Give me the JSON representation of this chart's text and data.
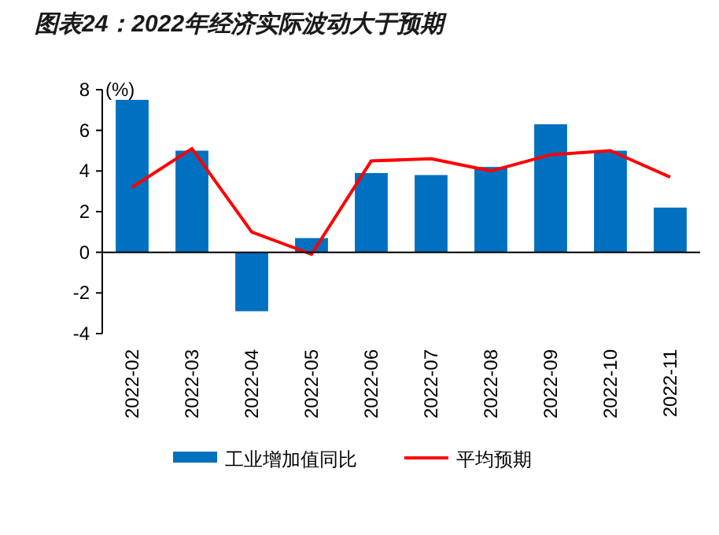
{
  "chart_data": {
    "type": "bar",
    "title": "图表24：2022年经济实际波动大于预期",
    "ylabel": "(%)",
    "categories": [
      "2022-02",
      "2022-03",
      "2022-04",
      "2022-05",
      "2022-06",
      "2022-07",
      "2022-08",
      "2022-09",
      "2022-10",
      "2022-11"
    ],
    "series": [
      {
        "name": "工业增加值同比",
        "color": "#0070c0",
        "values": [
          7.5,
          5.0,
          -2.9,
          0.7,
          3.9,
          3.8,
          4.2,
          6.3,
          5.0,
          2.2
        ]
      },
      {
        "name": "平均预期",
        "type": "line",
        "color": "#ff0000",
        "values": [
          3.2,
          5.1,
          1.0,
          -0.1,
          4.5,
          4.6,
          4.0,
          4.8,
          5.0,
          3.7
        ]
      }
    ],
    "ylim": [
      -4,
      8
    ],
    "yticks": [
      -4,
      -2,
      0,
      2,
      4,
      6,
      8
    ],
    "legend": "bottom"
  }
}
